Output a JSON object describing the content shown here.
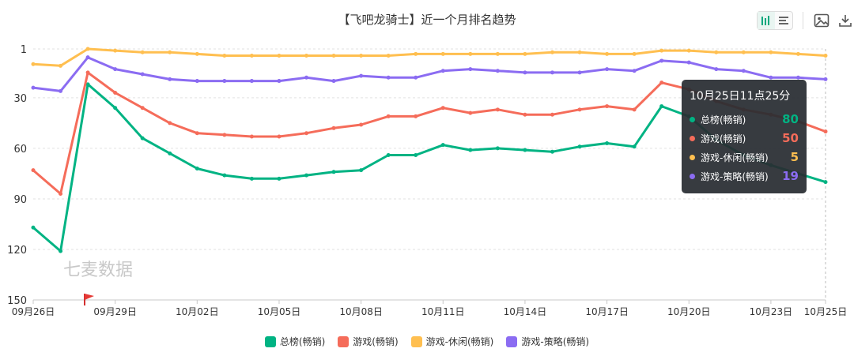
{
  "chart_data": {
    "type": "line",
    "title": "【飞吧龙骑士】近一个月排名趋势",
    "x": [
      "09月26日",
      "09月27日",
      "09月28日",
      "09月29日",
      "09月30日",
      "10月01日",
      "10月02日",
      "10月03日",
      "10月04日",
      "10月05日",
      "10月06日",
      "10月07日",
      "10月08日",
      "10月09日",
      "10月10日",
      "10月11日",
      "10月12日",
      "10月13日",
      "10月14日",
      "10月15日",
      "10月16日",
      "10月17日",
      "10月18日",
      "10月19日",
      "10月20日",
      "10月21日",
      "10月22日",
      "10月23日",
      "10月24日",
      "10月25日"
    ],
    "x_tick_labels": [
      "09月26日",
      "09月29日",
      "10月02日",
      "10月05日",
      "10月08日",
      "10月11日",
      "10月14日",
      "10月17日",
      "10月20日",
      "10月23日",
      "10月25日"
    ],
    "y_ticks": [
      1,
      30,
      60,
      90,
      120,
      150
    ],
    "ylim": [
      1,
      150
    ],
    "y_inverted": true,
    "grid": true,
    "legend_position": "bottom",
    "series": [
      {
        "name": "总榜(畅销)",
        "color": "#00b383",
        "values": [
          107,
          121,
          22,
          36,
          54,
          63,
          72,
          76,
          78,
          78,
          76,
          74,
          73,
          64,
          64,
          58,
          61,
          60,
          61,
          62,
          59,
          57,
          59,
          35,
          41,
          55,
          64,
          70,
          75,
          80
        ]
      },
      {
        "name": "游戏(畅销)",
        "color": "#f56c5a",
        "values": [
          73,
          87,
          15,
          27,
          36,
          45,
          51,
          52,
          53,
          53,
          51,
          48,
          46,
          41,
          41,
          36,
          39,
          37,
          40,
          40,
          37,
          35,
          37,
          21,
          25,
          32,
          37,
          40,
          44,
          50
        ]
      },
      {
        "name": "游戏-休闲(畅销)",
        "color": "#ffbf50",
        "values": [
          10,
          11,
          1,
          2,
          3,
          3,
          4,
          5,
          5,
          5,
          5,
          5,
          5,
          5,
          4,
          4,
          4,
          4,
          4,
          3,
          3,
          4,
          4,
          2,
          2,
          3,
          3,
          3,
          4,
          5
        ]
      },
      {
        "name": "游戏-策略(畅销)",
        "color": "#8b6cf2",
        "values": [
          24,
          26,
          6,
          13,
          16,
          19,
          20,
          20,
          20,
          20,
          18,
          20,
          17,
          18,
          18,
          14,
          13,
          14,
          15,
          15,
          15,
          13,
          14,
          8,
          9,
          13,
          14,
          18,
          18,
          19
        ]
      }
    ],
    "tooltip": {
      "title": "10月25日11点25分",
      "rows": [
        {
          "name": "总榜(畅销)",
          "value": "80",
          "color": "#00b383"
        },
        {
          "name": "游戏(畅销)",
          "value": "50",
          "color": "#f56c5a"
        },
        {
          "name": "游戏-休闲(畅销)",
          "value": "5",
          "color": "#ffbf50"
        },
        {
          "name": "游戏-策略(畅销)",
          "value": "19",
          "color": "#8b6cf2"
        }
      ]
    },
    "watermark": "七麦数据"
  }
}
